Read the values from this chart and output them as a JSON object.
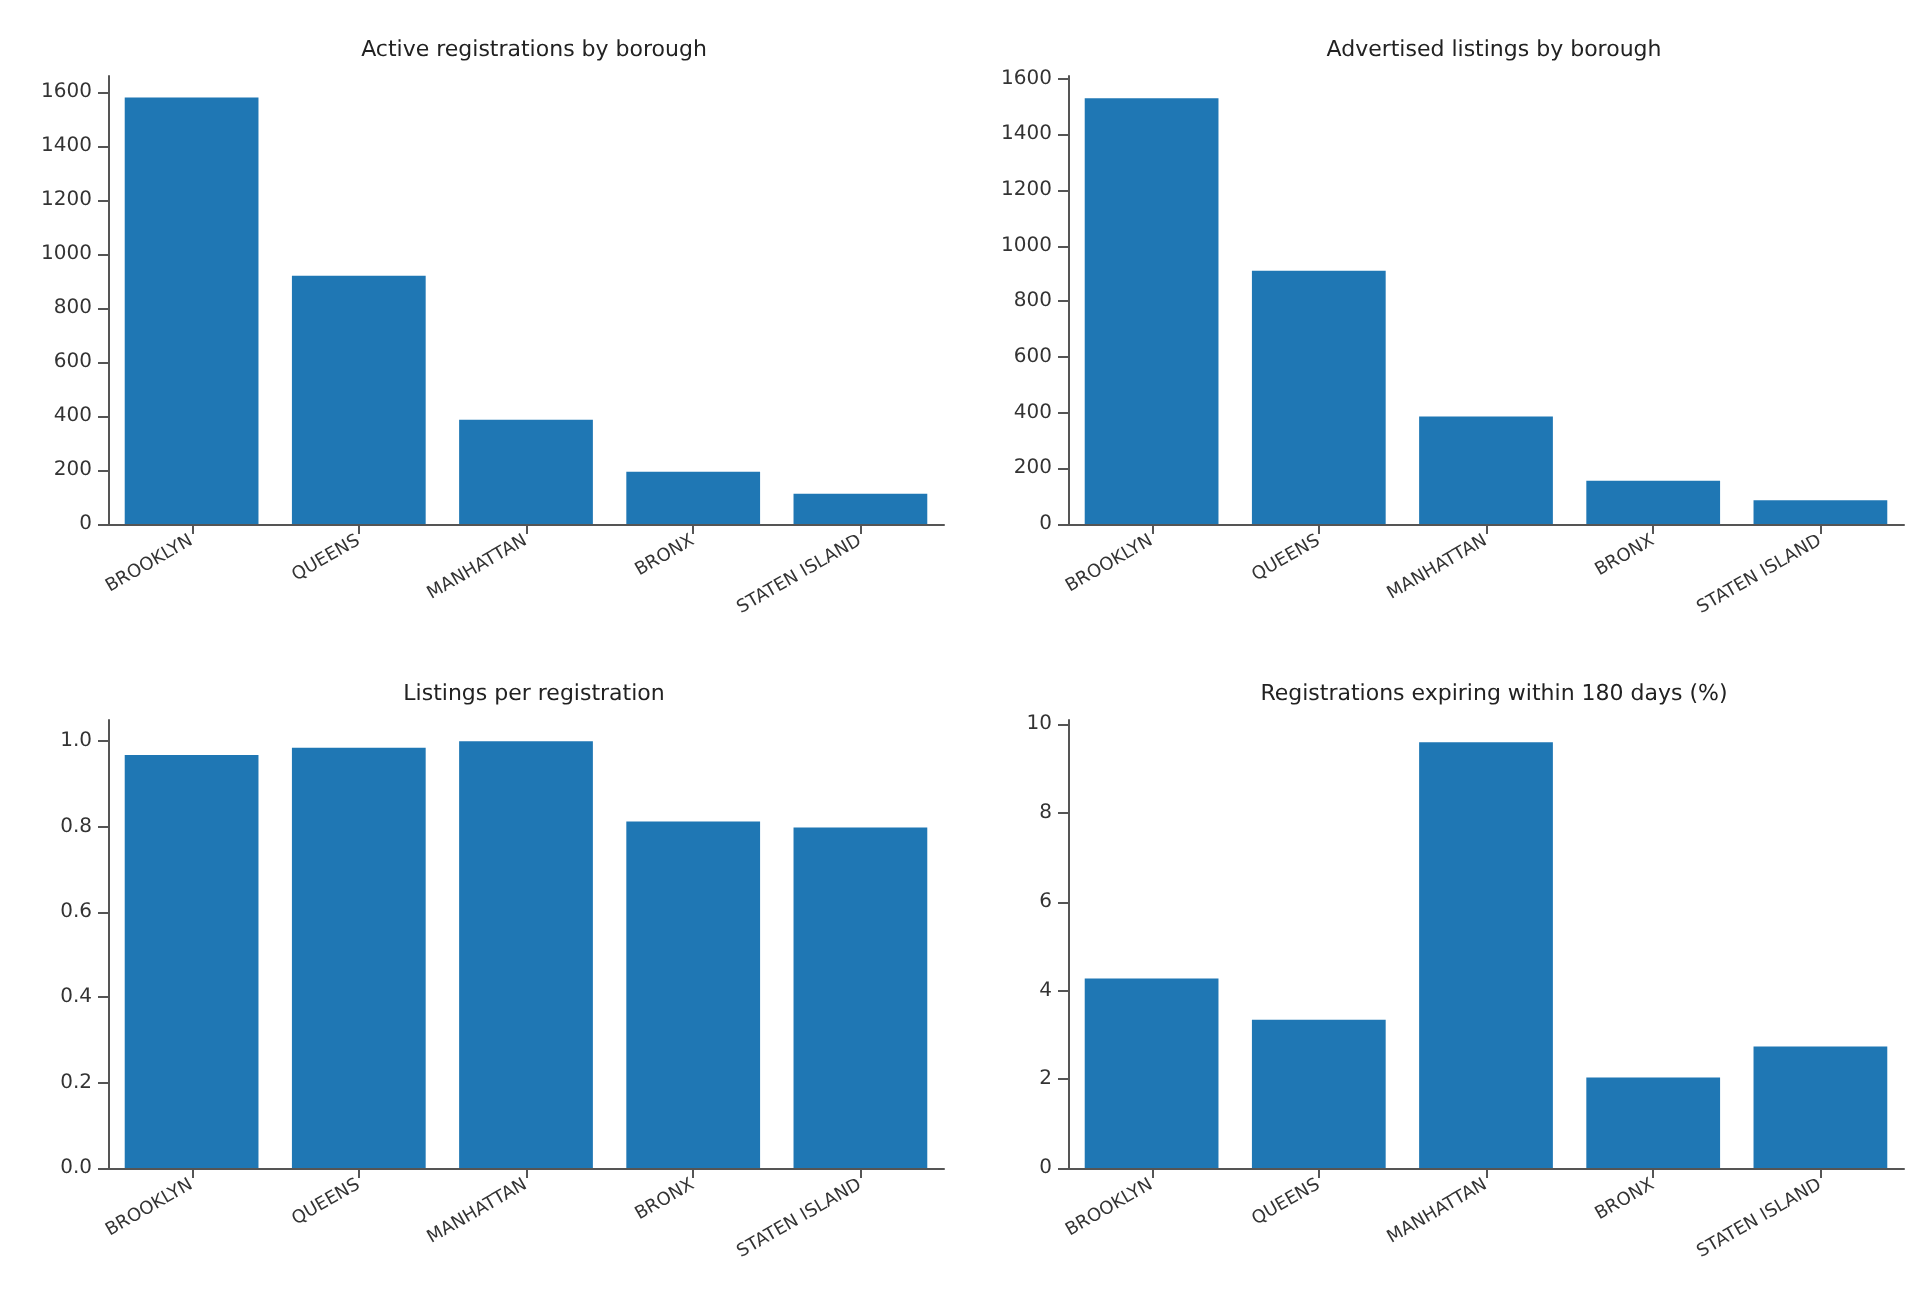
{
  "chart_data": [
    {
      "type": "bar",
      "title": "Active registrations by borough",
      "categories": [
        "BROOKLYN",
        "QUEENS",
        "MANHATTAN",
        "BRONX",
        "STATEN ISLAND"
      ],
      "values": [
        1580,
        920,
        386,
        194,
        112
      ],
      "color": "#1f77b4",
      "ylim": [
        0,
        1660
      ],
      "yticks": [
        0,
        200,
        400,
        600,
        800,
        1000,
        1200,
        1400,
        1600
      ]
    },
    {
      "type": "bar",
      "title": "Advertised listings by borough",
      "categories": [
        "BROOKLYN",
        "QUEENS",
        "MANHATTAN",
        "BRONX",
        "STATEN ISLAND"
      ],
      "values": [
        1530,
        910,
        386,
        155,
        85
      ],
      "color": "#1f77b4",
      "ylim": [
        0,
        1610
      ],
      "yticks": [
        0,
        200,
        400,
        600,
        800,
        1000,
        1200,
        1400,
        1600
      ]
    },
    {
      "type": "bar",
      "title": "Listings per registration",
      "categories": [
        "BROOKLYN",
        "QUEENS",
        "MANHATTAN",
        "BRONX",
        "STATEN ISLAND"
      ],
      "values": [
        0.968,
        0.985,
        1.0,
        0.812,
        0.798
      ],
      "color": "#1f77b4",
      "ylim": [
        0,
        1.05
      ],
      "yticks": [
        {
          "value": 0,
          "label": "0.0"
        },
        0.2,
        0.4,
        0.6,
        0.8,
        {
          "value": 1,
          "label": "1.0"
        }
      ]
    },
    {
      "type": "bar",
      "title": "Registrations expiring within 180 days (%)",
      "categories": [
        "BROOKLYN",
        "QUEENS",
        "MANHATTAN",
        "BRONX",
        "STATEN ISLAND"
      ],
      "values": [
        4.27,
        3.34,
        9.6,
        2.04,
        2.74
      ],
      "color": "#1f77b4",
      "ylim": [
        0,
        10.1
      ],
      "yticks": [
        0,
        2,
        4,
        6,
        8,
        10
      ]
    }
  ]
}
